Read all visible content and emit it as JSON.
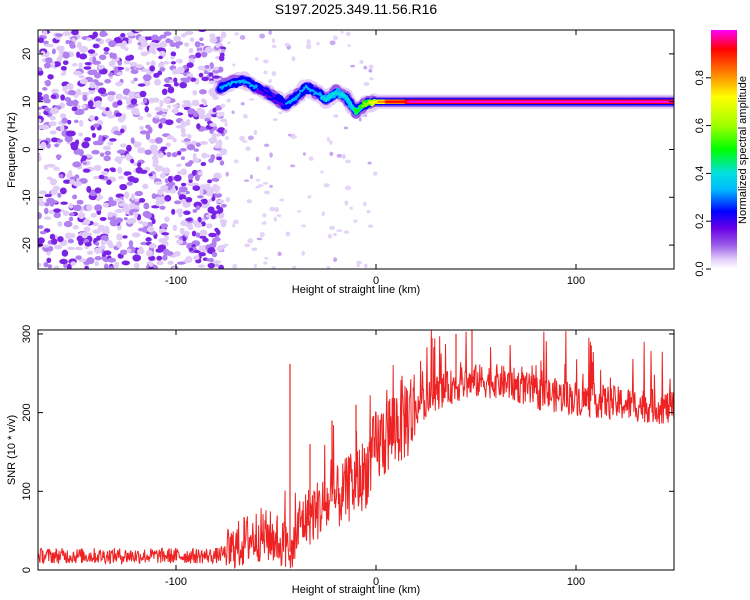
{
  "title": "S197.2025.349.11.56.R16",
  "chart_data": [
    {
      "type": "heatmap",
      "name": "spectrogram",
      "xlabel": "Height of straight line (km)",
      "ylabel": "Frequency (Hz)",
      "xlim": [
        -169,
        149
      ],
      "ylim": [
        -25,
        25
      ],
      "xticks": [
        "-100",
        "0",
        "100"
      ],
      "xtick_values": [
        -100,
        0,
        100
      ],
      "yticks": [
        "20",
        "10",
        "0",
        "-10",
        "-20"
      ],
      "ytick_values": [
        20,
        10,
        0,
        -10,
        -20
      ],
      "noise_region_x": [
        -169,
        -80
      ],
      "ridge": {
        "x": [
          -78,
          -72,
          -66,
          -60,
          -55,
          -50,
          -45,
          -40,
          -35,
          -30,
          -25,
          -20,
          -15,
          -12,
          -10,
          -5,
          0,
          5,
          10,
          20,
          40,
          60,
          80,
          100,
          120,
          140,
          149
        ],
        "freq": [
          13,
          14,
          14.5,
          13,
          12,
          10.5,
          9.5,
          11,
          13,
          12,
          10.5,
          12,
          11,
          9,
          8,
          9.5,
          10,
          10,
          10,
          10,
          10,
          10,
          10,
          10,
          10,
          10,
          10
        ],
        "amplitude": [
          0.3,
          0.35,
          0.35,
          0.3,
          0.25,
          0.25,
          0.3,
          0.3,
          0.35,
          0.35,
          0.4,
          0.45,
          0.45,
          0.45,
          0.5,
          0.6,
          0.7,
          0.8,
          0.85,
          0.9,
          0.95,
          0.95,
          0.95,
          0.95,
          0.95,
          0.95,
          0.95
        ]
      },
      "colorbar": {
        "label": "Normalized spectral amplitude",
        "ticks": [
          "0.0",
          "0.2",
          "0.4",
          "0.6",
          "0.8"
        ],
        "tick_values": [
          0.0,
          0.2,
          0.4,
          0.6,
          0.8
        ],
        "range": [
          0,
          1
        ],
        "colors": [
          "#ffffff",
          "#e4cff9",
          "#9a5ce8",
          "#6a00e8",
          "#0000ff",
          "#00b8ff",
          "#00e0e0",
          "#00ff00",
          "#a0ff00",
          "#ffff00",
          "#ff8000",
          "#ff0000",
          "#ff00ff"
        ]
      }
    },
    {
      "type": "line",
      "name": "snr",
      "xlabel": "Height of straight line (km)",
      "ylabel": "SNR (10 * v/v)",
      "xlim": [
        -169,
        149
      ],
      "ylim": [
        0,
        305
      ],
      "xticks": [
        "-100",
        "0",
        "100"
      ],
      "xtick_values": [
        -100,
        0,
        100
      ],
      "yticks": [
        "0",
        "100",
        "200",
        "300"
      ],
      "ytick_values": [
        0,
        100,
        200,
        300
      ],
      "color": "#ee2222",
      "trend": {
        "x": [
          -169,
          -140,
          -110,
          -80,
          -72,
          -65,
          -58,
          -50,
          -45,
          -42,
          -38,
          -30,
          -20,
          -10,
          -5,
          0,
          10,
          20,
          30,
          40,
          50,
          60,
          70,
          80,
          90,
          100,
          110,
          120,
          130,
          140,
          149
        ],
        "y": [
          18,
          18,
          18,
          18,
          25,
          38,
          45,
          40,
          30,
          20,
          60,
          75,
          90,
          110,
          125,
          155,
          185,
          205,
          225,
          235,
          240,
          240,
          235,
          225,
          222,
          218,
          215,
          212,
          210,
          208,
          205
        ]
      },
      "spikes": {
        "x": [
          -43,
          -33,
          -22,
          -10,
          28,
          40,
          48
        ],
        "y": [
          262,
          160,
          190,
          210,
          295,
          300,
          305
        ]
      }
    }
  ]
}
